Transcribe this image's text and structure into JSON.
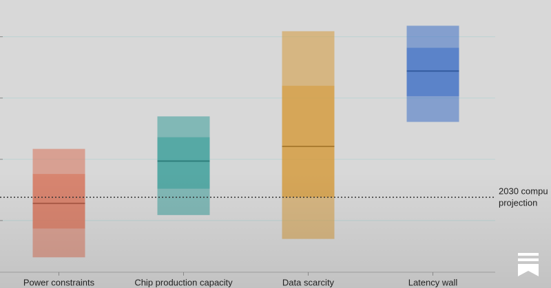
{
  "chart_data": {
    "type": "range_bar",
    "categories": [
      "Power constraints",
      "Chip production capacity",
      "Data scarcity",
      "Latency wall"
    ],
    "colors": [
      "#d8735a",
      "#3a9e9a",
      "#d69b3c",
      "#3f71c6"
    ],
    "outer_low": [
      0.4,
      1.09,
      0.7,
      2.61
    ],
    "outer_high": [
      2.17,
      2.7,
      4.09,
      4.18
    ],
    "inner_low": [
      0.87,
      1.52,
      1.38,
      3.03
    ],
    "inner_high": [
      1.76,
      2.36,
      3.2,
      3.82
    ],
    "median": [
      1.28,
      1.97,
      2.21,
      3.44
    ],
    "projection": {
      "value": 1.38,
      "label": [
        "2030 compu",
        "projection"
      ]
    },
    "ylim": [
      0,
      4.6
    ],
    "yticks": [
      1,
      2,
      3,
      4
    ],
    "grid": true
  }
}
